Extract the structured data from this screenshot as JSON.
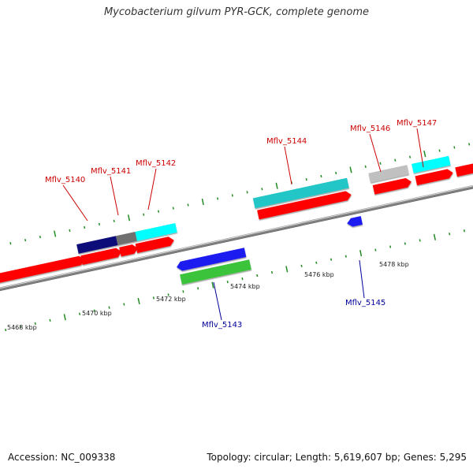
{
  "title": "Mycobacterium gilvum PYR-GCK, complete genome",
  "footer": {
    "accession": "Accession: NC_009338",
    "summary": "Topology: circular; Length: 5,619,607 bp; Genes: 5,295"
  },
  "colors": {
    "forward_label": "#cc0000",
    "reverse_label": "#000099",
    "tick": "#228b22",
    "backbone": "#808080",
    "red": "#ff0000",
    "cyan": "#00ffff",
    "teal": "#22c6c6",
    "navy": "#0a0a7a",
    "gray": "#707070",
    "lightgray": "#c0c0c0",
    "blue": "#1a1af0",
    "green": "#3ac43a"
  },
  "scale_labels": [
    "5468 kbp",
    "5470 kbp",
    "5472 kbp",
    "5474 kbp",
    "5476 kbp",
    "5478 kbp"
  ],
  "gene_labels": {
    "forward": [
      "Mflv_5140",
      "Mflv_5141",
      "Mflv_5142",
      "Mflv_5144",
      "Mflv_5146",
      "Mflv_5147"
    ],
    "reverse": [
      "Mflv_5143",
      "Mflv_5145"
    ]
  }
}
